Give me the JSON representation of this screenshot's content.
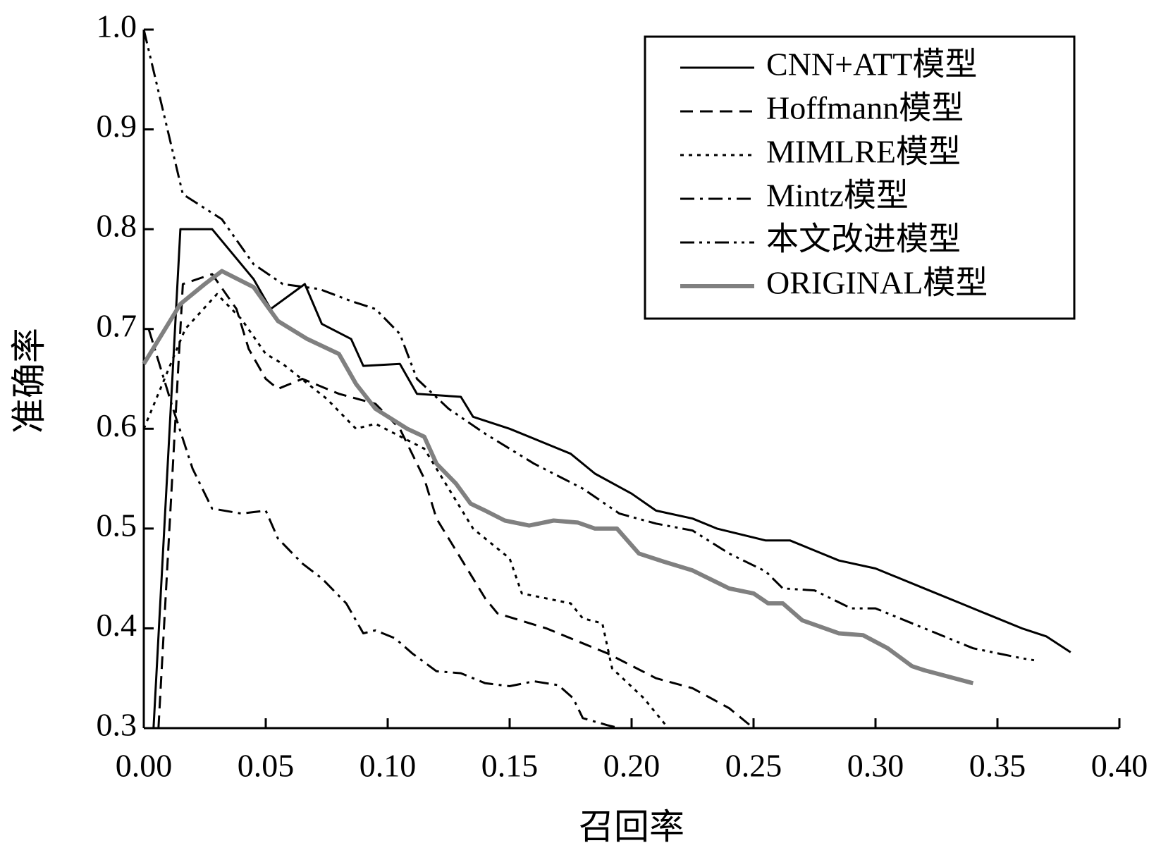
{
  "chart_data": {
    "type": "line",
    "xlabel": "召回率",
    "ylabel": "准确率",
    "xlim": [
      0,
      0.4
    ],
    "ylim": [
      0.3,
      1.0
    ],
    "xticks": [
      {
        "value": 0,
        "label": "0.00"
      },
      0.05,
      {
        "value": 0.1,
        "label": "0.10"
      },
      0.15,
      {
        "value": 0.2,
        "label": "0.20"
      },
      0.25,
      {
        "value": 0.3,
        "label": "0.30"
      },
      0.35,
      {
        "value": 0.4,
        "label": "0.40"
      }
    ],
    "yticks": [
      0.3,
      0.4,
      0.5,
      0.6,
      0.7,
      0.8,
      0.9,
      {
        "value": 1.0,
        "label": "1.0"
      }
    ],
    "legend": "upper right",
    "series": [
      {
        "name": "CNN+ATT模型",
        "color": "#000000",
        "style": "solid",
        "x": [
          0.004,
          0.015,
          0.028,
          0.045,
          0.052,
          0.066,
          0.073,
          0.085,
          0.09,
          0.105,
          0.112,
          0.13,
          0.135,
          0.15,
          0.175,
          0.185,
          0.2,
          0.21,
          0.225,
          0.235,
          0.255,
          0.265,
          0.275,
          0.285,
          0.3,
          0.31,
          0.32,
          0.335,
          0.345,
          0.36,
          0.37,
          0.38
        ],
        "values": [
          0.3,
          0.8,
          0.8,
          0.75,
          0.72,
          0.745,
          0.705,
          0.69,
          0.663,
          0.665,
          0.635,
          0.632,
          0.612,
          0.6,
          0.575,
          0.555,
          0.535,
          0.518,
          0.51,
          0.5,
          0.488,
          0.488,
          0.478,
          0.468,
          0.46,
          0.45,
          0.44,
          0.425,
          0.415,
          0.4,
          0.392,
          0.376
        ]
      },
      {
        "name": "Hoffmann模型",
        "color": "#000000",
        "style": "dashed",
        "x": [
          0.006,
          0.016,
          0.028,
          0.038,
          0.043,
          0.05,
          0.055,
          0.065,
          0.08,
          0.095,
          0.105,
          0.115,
          0.12,
          0.13,
          0.14,
          0.145,
          0.165,
          0.18,
          0.19,
          0.21,
          0.225,
          0.24,
          0.25
        ],
        "values": [
          0.3,
          0.745,
          0.755,
          0.72,
          0.68,
          0.65,
          0.64,
          0.65,
          0.635,
          0.625,
          0.6,
          0.55,
          0.51,
          0.47,
          0.43,
          0.415,
          0.4,
          0.385,
          0.375,
          0.35,
          0.34,
          0.32,
          0.3
        ]
      },
      {
        "name": "MIMLRE模型",
        "color": "#000000",
        "style": "dotted",
        "x": [
          0,
          0.017,
          0.03,
          0.04,
          0.05,
          0.057,
          0.075,
          0.087,
          0.095,
          0.115,
          0.125,
          0.135,
          0.15,
          0.155,
          0.175,
          0.18,
          0.188,
          0.192,
          0.205,
          0.215
        ],
        "values": [
          0.6,
          0.7,
          0.735,
          0.71,
          0.675,
          0.665,
          0.63,
          0.6,
          0.605,
          0.58,
          0.54,
          0.5,
          0.47,
          0.435,
          0.425,
          0.41,
          0.405,
          0.36,
          0.33,
          0.3
        ]
      },
      {
        "name": "Mintz模型",
        "color": "#000000",
        "style": "dashdot",
        "x": [
          0.002,
          0.012,
          0.02,
          0.028,
          0.04,
          0.05,
          0.055,
          0.065,
          0.073,
          0.083,
          0.09,
          0.095,
          0.103,
          0.11,
          0.12,
          0.13,
          0.14,
          0.15,
          0.16,
          0.17,
          0.176,
          0.18,
          0.19,
          0.195
        ],
        "values": [
          0.7,
          0.62,
          0.56,
          0.52,
          0.515,
          0.518,
          0.49,
          0.465,
          0.45,
          0.425,
          0.395,
          0.398,
          0.39,
          0.375,
          0.357,
          0.355,
          0.345,
          0.342,
          0.347,
          0.343,
          0.33,
          0.31,
          0.303,
          0.3
        ]
      },
      {
        "name": "本文改进模型",
        "color": "#000000",
        "style": "dashdotdot",
        "x": [
          0,
          0.016,
          0.032,
          0.045,
          0.057,
          0.072,
          0.085,
          0.095,
          0.105,
          0.112,
          0.125,
          0.14,
          0.16,
          0.18,
          0.195,
          0.21,
          0.225,
          0.24,
          0.255,
          0.262,
          0.275,
          0.29,
          0.3,
          0.32,
          0.34,
          0.36,
          0.365
        ],
        "values": [
          1.0,
          0.835,
          0.81,
          0.765,
          0.745,
          0.74,
          0.728,
          0.72,
          0.695,
          0.65,
          0.62,
          0.595,
          0.565,
          0.54,
          0.515,
          0.505,
          0.498,
          0.475,
          0.457,
          0.44,
          0.438,
          0.42,
          0.42,
          0.4,
          0.38,
          0.37,
          0.368
        ]
      },
      {
        "name": "ORIGINAL模型",
        "color": "#808080",
        "style": "thick",
        "x": [
          0,
          0.015,
          0.025,
          0.032,
          0.045,
          0.055,
          0.067,
          0.08,
          0.087,
          0.095,
          0.108,
          0.115,
          0.12,
          0.128,
          0.134,
          0.14,
          0.148,
          0.158,
          0.168,
          0.178,
          0.185,
          0.194,
          0.203,
          0.213,
          0.225,
          0.24,
          0.25,
          0.256,
          0.262,
          0.27,
          0.285,
          0.295,
          0.305,
          0.315,
          0.32,
          0.34
        ],
        "values": [
          0.665,
          0.725,
          0.745,
          0.758,
          0.742,
          0.708,
          0.69,
          0.675,
          0.645,
          0.62,
          0.6,
          0.592,
          0.565,
          0.545,
          0.525,
          0.518,
          0.508,
          0.503,
          0.508,
          0.506,
          0.5,
          0.5,
          0.475,
          0.467,
          0.458,
          0.44,
          0.435,
          0.425,
          0.425,
          0.408,
          0.395,
          0.393,
          0.38,
          0.362,
          0.358,
          0.345
        ]
      }
    ]
  }
}
